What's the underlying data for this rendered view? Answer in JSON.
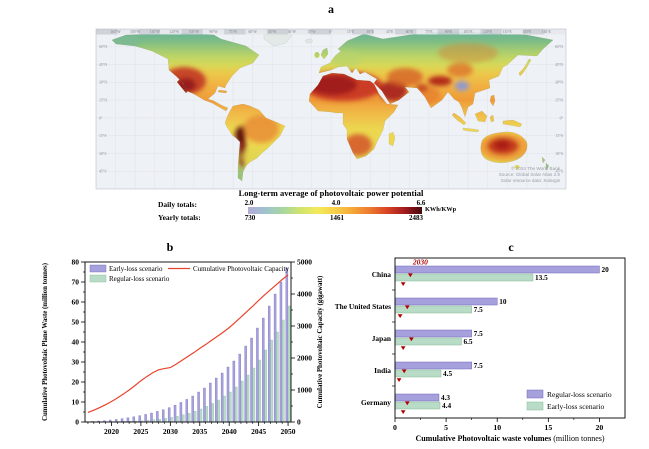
{
  "figure": {
    "panel_a_label": "a",
    "panel_b_label": "b",
    "panel_c_label": "c"
  },
  "map": {
    "title": "Long-term average of photovoltaic power potential",
    "daily_label": "Daily totals:",
    "yearly_label": "Yearly totals:",
    "daily_ticks": [
      "2.0",
      "4.0",
      "6.6"
    ],
    "yearly_ticks": [
      "730",
      "1461",
      "2483"
    ],
    "unit": "KWh/KWp",
    "attribution_lines": [
      "© 2024 The World Bank",
      "Source: Global Solar Atlas 2.9",
      "Solar resource data: Solargis"
    ],
    "lat_labels": [
      "60°N",
      "45°N",
      "30°N",
      "15°N",
      "0°",
      "15°S",
      "30°S",
      "45°S"
    ],
    "lon_labels": [
      "165°W",
      "150°W",
      "135°W",
      "120°W",
      "105°W",
      "90°W",
      "75°W",
      "60°W",
      "45°W",
      "30°W",
      "15°W",
      "0°",
      "15°E",
      "30°E",
      "45°E",
      "60°E",
      "75°E",
      "90°E",
      "105°E",
      "120°E",
      "135°E",
      "150°E",
      "165°E"
    ],
    "colorbar_colors": [
      "#b5aad8",
      "#9fc3cf",
      "#a8d6a0",
      "#cfe36e",
      "#f2ea5a",
      "#f7d049",
      "#f5a838",
      "#ec7a2e",
      "#d94325",
      "#a31b1d",
      "#45090e"
    ]
  },
  "chart_data": [
    {
      "type": "bar",
      "panel": "b",
      "x_years": [
        2016,
        2017,
        2018,
        2019,
        2020,
        2021,
        2022,
        2023,
        2024,
        2025,
        2026,
        2027,
        2028,
        2029,
        2030,
        2031,
        2032,
        2033,
        2034,
        2035,
        2036,
        2037,
        2038,
        2039,
        2040,
        2041,
        2042,
        2043,
        2044,
        2045,
        2046,
        2047,
        2048,
        2049,
        2050
      ],
      "series": [
        {
          "name": "Early-loss scenario",
          "type": "bar",
          "axis": "left",
          "color": "#a6a0dd",
          "border": "#6f68b8",
          "values": [
            0.2,
            0.3,
            0.5,
            0.7,
            1,
            1.3,
            1.7,
            2.1,
            2.6,
            3.2,
            3.8,
            4.5,
            5.3,
            6.2,
            7.2,
            8.4,
            9.8,
            11.3,
            13,
            15,
            17,
            19.5,
            22,
            24.5,
            27.5,
            30.5,
            34,
            38,
            42,
            47,
            52,
            58,
            64,
            70,
            77
          ]
        },
        {
          "name": "Regular-loss scenario",
          "type": "bar",
          "axis": "left",
          "color": "#b9dcc6",
          "border": "#82b999",
          "values": [
            0.03,
            0.05,
            0.08,
            0.1,
            0.15,
            0.2,
            0.3,
            0.4,
            0.5,
            0.65,
            0.85,
            1.1,
            1.4,
            1.8,
            2.3,
            2.9,
            3.6,
            4.4,
            5.4,
            6.5,
            7.8,
            9.3,
            11,
            13,
            15,
            17.5,
            20.5,
            23.5,
            27,
            31,
            36,
            41,
            45,
            51,
            58
          ]
        },
        {
          "name": "Cumulative Photovoltaic Capacity",
          "type": "line",
          "axis": "right",
          "color": "#e8432c",
          "values": [
            300,
            370,
            450,
            540,
            640,
            750,
            870,
            1000,
            1140,
            1290,
            1420,
            1540,
            1630,
            1670,
            1700,
            1810,
            1930,
            2050,
            2170,
            2300,
            2420,
            2550,
            2680,
            2810,
            2950,
            3110,
            3280,
            3450,
            3620,
            3800,
            3970,
            4130,
            4290,
            4450,
            4600
          ]
        }
      ],
      "ylabel_left": "Cumulative Photovoltaic Plane Waste (million tonnes)",
      "ylabel_right": "Cumulative Photovoltaic Capacity (gigawatt)",
      "ylim_left": [
        0,
        80
      ],
      "yticks_left": [
        0,
        10,
        20,
        30,
        40,
        50,
        60,
        70,
        80
      ],
      "ylim_right": [
        0,
        5000
      ],
      "yticks_right": [
        0,
        1000,
        2000,
        3000,
        4000,
        5000
      ],
      "xticks": [
        2020,
        2025,
        2030,
        2035,
        2040,
        2045,
        2050
      ]
    },
    {
      "type": "bar",
      "panel": "c",
      "orientation": "horizontal",
      "categories": [
        "China",
        "The United States",
        "Japan",
        "India",
        "Germany"
      ],
      "series": [
        {
          "name": "Regular-loss scenario",
          "color": "#a6a0dd",
          "border": "#6f68b8",
          "values": [
            20,
            10,
            7.5,
            7.5,
            4.3
          ]
        },
        {
          "name": "Early-loss scenario",
          "color": "#b9dcc6",
          "border": "#82b999",
          "values": [
            13.5,
            7.5,
            6.5,
            4.5,
            4.4
          ]
        }
      ],
      "bar_value_labels": [
        [
          "20",
          "10",
          "7.5",
          "7.5",
          "4.3"
        ],
        [
          "13.5",
          "7.5",
          "6.5",
          "4.5",
          "4.4"
        ]
      ],
      "year_2030_markers": {
        "label": "2030",
        "color": "#b00000",
        "regular_loss_positions": [
          1.5,
          1.2,
          1.6,
          0.9,
          1.2
        ],
        "early_loss_positions": [
          0.8,
          0.5,
          0.8,
          0.4,
          0.8
        ]
      },
      "xlabel_bold": "Cumulative Photovoltaic waste volumes",
      "xlabel_rest": " (million tonnes)",
      "xlim": [
        0,
        22.5
      ],
      "xticks": [
        0,
        5,
        10,
        15,
        20
      ]
    }
  ]
}
